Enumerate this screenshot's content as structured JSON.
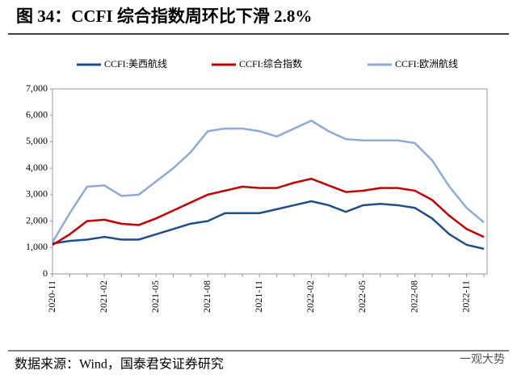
{
  "chart_data": {
    "type": "line",
    "title": "图 34：CCFI 综合指数周环比下滑 2.8%",
    "source": "数据来源：Wind，国泰君安证券研究",
    "watermark": "一观大势",
    "categories": [
      "2020-11",
      null,
      null,
      "2021-02",
      null,
      null,
      "2021-05",
      null,
      null,
      "2021-08",
      null,
      null,
      "2021-11",
      null,
      null,
      "2022-02",
      null,
      null,
      "2022-05",
      null,
      null,
      "2022-08",
      null,
      null,
      "2022-11",
      null
    ],
    "series": [
      {
        "name": "CCFI:美西航线",
        "color": "#1f4e8c",
        "values": [
          1150,
          1250,
          1300,
          1400,
          1300,
          1300,
          1500,
          1700,
          1900,
          2000,
          2300,
          2300,
          2300,
          2450,
          2600,
          2750,
          2600,
          2350,
          2600,
          2650,
          2600,
          2500,
          2100,
          1500,
          1100,
          950
        ]
      },
      {
        "name": "CCFI:综合指数",
        "color": "#c00000",
        "values": [
          1100,
          1500,
          2000,
          2050,
          1900,
          1850,
          2100,
          2400,
          2700,
          3000,
          3150,
          3300,
          3250,
          3250,
          3450,
          3600,
          3350,
          3100,
          3150,
          3250,
          3250,
          3150,
          2800,
          2200,
          1700,
          1400
        ]
      },
      {
        "name": "CCFI:欧洲航线",
        "color": "#8eaadb",
        "values": [
          1200,
          2300,
          3300,
          3350,
          2950,
          3000,
          3500,
          4000,
          4600,
          5400,
          5500,
          5500,
          5400,
          5200,
          5500,
          5800,
          5400,
          5100,
          5050,
          5050,
          5050,
          4950,
          4300,
          3300,
          2500,
          1950
        ]
      }
    ],
    "ylim": [
      0,
      7000
    ],
    "yticks": [
      0,
      {
        "value": 1000,
        "label": "1,000"
      },
      {
        "value": 2000,
        "label": "2,000"
      },
      {
        "value": 3000,
        "label": "3,000"
      },
      {
        "value": 4000,
        "label": "4,000"
      },
      {
        "value": 5000,
        "label": "5,000"
      },
      {
        "value": 6000,
        "label": "6,000"
      },
      {
        "value": 7000,
        "label": "7,000"
      }
    ],
    "legend": "top"
  }
}
